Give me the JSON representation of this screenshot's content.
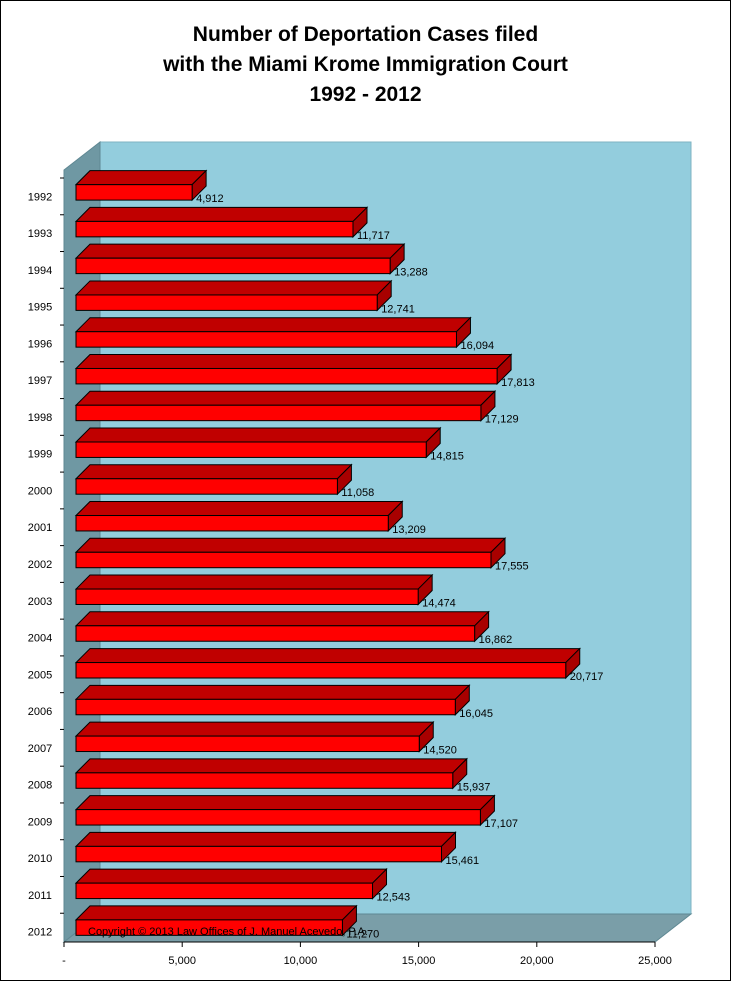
{
  "title_lines": [
    "Number of Deportation Cases filed",
    "with the Miami Krome Immigration Court",
    "1992 - 2012"
  ],
  "copyright": "Copyright © 2013 Law Offices of J. Manuel Acevedo, P.A.",
  "colors": {
    "bar": "#ff0000",
    "bar_top": "#c00000",
    "bar_side": "#a80000",
    "back_wall": "#93cddd",
    "side_wall": "#6f98a3",
    "floor": "#7a9ea8"
  },
  "chart_data": {
    "type": "bar",
    "orientation": "horizontal",
    "style": "3d-cylinder-box",
    "categories": [
      "1992",
      "1993",
      "1994",
      "1995",
      "1996",
      "1997",
      "1998",
      "1999",
      "2000",
      "2001",
      "2002",
      "2003",
      "2004",
      "2005",
      "2006",
      "2007",
      "2008",
      "2009",
      "2010",
      "2011",
      "2012"
    ],
    "values": [
      4912,
      11717,
      13288,
      12741,
      16094,
      17813,
      17129,
      14815,
      11058,
      13209,
      17555,
      14474,
      16862,
      20717,
      16045,
      14520,
      15937,
      17107,
      15461,
      12543,
      11270
    ],
    "value_labels": [
      "4,912",
      "11,717",
      "13,288",
      "12,741",
      "16,094",
      "17,813",
      "17,129",
      "14,815",
      "11,058",
      "13,209",
      "17,555",
      "14,474",
      "16,862",
      "20,717",
      "16,045",
      "14,520",
      "15,937",
      "17,107",
      "15,461",
      "12,543",
      "11,270"
    ],
    "xlim": [
      0,
      25000
    ],
    "x_ticks": [
      0,
      5000,
      10000,
      15000,
      20000,
      25000
    ],
    "x_tick_labels": [
      "-",
      "5,000",
      "10,000",
      "15,000",
      "20,000",
      "25,000"
    ],
    "grid": false,
    "legend": "none"
  }
}
